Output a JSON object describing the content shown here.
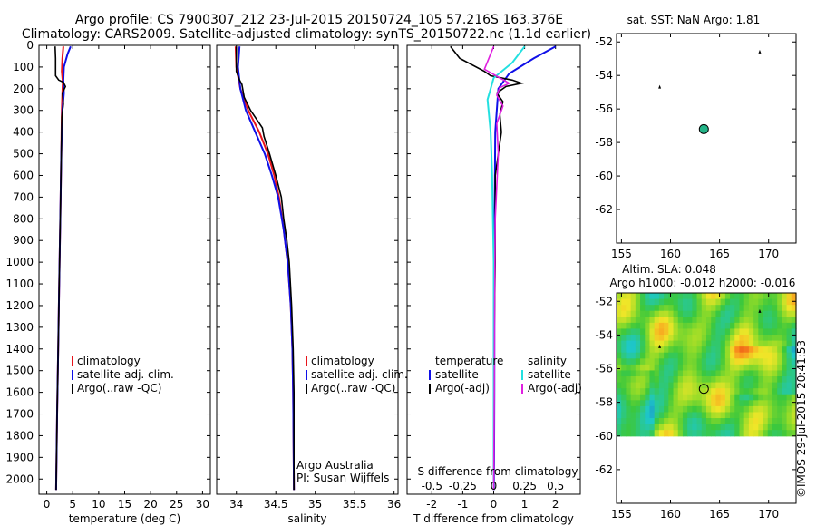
{
  "header": {
    "line1": "Argo profile: CS 7900307_212 23-Jul-2015 20150724_105 57.216S 163.376E",
    "line2": "Climatology: CARS2009. Satellite-adjusted climatology: synTS_20150722.nc (1.1d earlier)"
  },
  "side_label": "©IMOS 29-Jul-2015 20:41:53",
  "colors": {
    "climatology": "#e8141b",
    "satellite": "#1010e8",
    "argo": "#000000",
    "sal_satellite": "#22e0e0",
    "sal_argo": "#e020e0",
    "float_marker": "#23b488"
  },
  "chart_data": [
    {
      "type": "line",
      "panel": "temperature",
      "title": "",
      "xlabel": "temperature (deg C)",
      "ylabel": "",
      "xlim": [
        -1.5,
        31.5
      ],
      "ylim": [
        2070,
        0
      ],
      "xticks": [
        0,
        5,
        10,
        15,
        20,
        25,
        30
      ],
      "yticks": [
        0,
        100,
        200,
        300,
        400,
        500,
        600,
        700,
        800,
        900,
        1000,
        1100,
        1200,
        1300,
        1400,
        1500,
        1600,
        1700,
        1800,
        1900,
        2000
      ],
      "legend": [
        "climatology",
        "satellite-adj. clim.",
        "Argo(..raw -QC)"
      ],
      "series": [
        {
          "name": "climatology",
          "color_key": "climatology",
          "points": [
            [
              3.2,
              5
            ],
            [
              3.0,
              60
            ],
            [
              2.9,
              120
            ],
            [
              3.1,
              170
            ],
            [
              3.0,
              220
            ],
            [
              2.9,
              300
            ],
            [
              2.8,
              500
            ],
            [
              2.6,
              800
            ],
            [
              2.4,
              1100
            ],
            [
              2.2,
              1400
            ],
            [
              2.0,
              1700
            ],
            [
              1.8,
              2050
            ]
          ]
        },
        {
          "name": "satellite-adj. clim.",
          "color_key": "satellite",
          "points": [
            [
              4.6,
              5
            ],
            [
              4.0,
              40
            ],
            [
              3.3,
              100
            ],
            [
              3.2,
              160
            ],
            [
              3.3,
              220
            ],
            [
              3.0,
              300
            ],
            [
              2.8,
              500
            ],
            [
              2.6,
              800
            ],
            [
              2.4,
              1100
            ],
            [
              2.2,
              1400
            ],
            [
              2.0,
              1700
            ],
            [
              1.8,
              2050
            ]
          ]
        },
        {
          "name": "Argo(..raw -QC)",
          "color_key": "argo",
          "points": [
            [
              1.6,
              5
            ],
            [
              1.7,
              60
            ],
            [
              1.7,
              140
            ],
            [
              2.3,
              160
            ],
            [
              3.2,
              170
            ],
            [
              3.6,
              190
            ],
            [
              3.0,
              220
            ],
            [
              3.2,
              270
            ],
            [
              2.9,
              330
            ],
            [
              2.8,
              500
            ],
            [
              2.6,
              800
            ],
            [
              2.4,
              1100
            ],
            [
              2.2,
              1400
            ],
            [
              2.0,
              1700
            ],
            [
              1.8,
              2050
            ]
          ]
        }
      ]
    },
    {
      "type": "line",
      "panel": "salinity",
      "xlabel": "salinity",
      "xlim": [
        33.75,
        36.05
      ],
      "ylim": [
        2070,
        0
      ],
      "xticks": [
        34,
        34.5,
        35,
        35.5,
        36
      ],
      "legend": [
        "climatology",
        "satellite-adj. clim.",
        "Argo(..raw -QC)"
      ],
      "annotations": [
        "Argo Australia",
        "PI: Susan Wijffels"
      ],
      "series": [
        {
          "name": "climatology",
          "color_key": "climatology",
          "points": [
            [
              33.99,
              5
            ],
            [
              34.0,
              100
            ],
            [
              34.05,
              200
            ],
            [
              34.15,
              300
            ],
            [
              34.29,
              400
            ],
            [
              34.4,
              500
            ],
            [
              34.48,
              600
            ],
            [
              34.54,
              700
            ],
            [
              34.6,
              850
            ],
            [
              34.65,
              1000
            ],
            [
              34.69,
              1200
            ],
            [
              34.71,
              1400
            ],
            [
              34.72,
              1600
            ],
            [
              34.73,
              2050
            ]
          ]
        },
        {
          "name": "satellite-adj. clim.",
          "color_key": "satellite",
          "points": [
            [
              34.04,
              5
            ],
            [
              34.02,
              100
            ],
            [
              34.05,
              200
            ],
            [
              34.12,
              300
            ],
            [
              34.24,
              400
            ],
            [
              34.36,
              500
            ],
            [
              34.45,
              600
            ],
            [
              34.53,
              700
            ],
            [
              34.6,
              850
            ],
            [
              34.65,
              1000
            ],
            [
              34.69,
              1200
            ],
            [
              34.71,
              1400
            ],
            [
              34.72,
              1600
            ],
            [
              34.73,
              2050
            ]
          ]
        },
        {
          "name": "Argo(..raw -QC)",
          "color_key": "argo",
          "points": [
            [
              34.0,
              5
            ],
            [
              34.0,
              120
            ],
            [
              34.04,
              160
            ],
            [
              34.07,
              180
            ],
            [
              34.1,
              240
            ],
            [
              34.18,
              300
            ],
            [
              34.33,
              380
            ],
            [
              34.35,
              420
            ],
            [
              34.42,
              500
            ],
            [
              34.5,
              600
            ],
            [
              34.57,
              700
            ],
            [
              34.6,
              800
            ],
            [
              34.64,
              900
            ],
            [
              34.67,
              1000
            ],
            [
              34.7,
              1200
            ],
            [
              34.72,
              1400
            ],
            [
              34.73,
              1600
            ],
            [
              34.73,
              2050
            ]
          ]
        }
      ]
    },
    {
      "type": "line",
      "panel": "difference",
      "xlabel": "T difference from climatology",
      "xlabel_top": "S difference from climatology",
      "xlim": [
        -2.8,
        2.8
      ],
      "ylim": [
        2070,
        0
      ],
      "xticks": [
        -2,
        -1,
        0,
        1,
        2
      ],
      "xticks_top_labels": [
        "-0.5",
        "-0.25",
        "0",
        "0.25",
        "0.5"
      ],
      "xticks_top_positions": [
        -2,
        -1,
        0,
        1,
        2
      ],
      "legend_titles": [
        "temperature",
        "salinity"
      ],
      "legend": [
        "satellite",
        "Argo(-adj)",
        "satellite",
        "Argo(-adj)"
      ],
      "series": [
        {
          "name": "temperature satellite",
          "color_key": "satellite",
          "points": [
            [
              2.0,
              5
            ],
            [
              1.3,
              60
            ],
            [
              0.5,
              130
            ],
            [
              0.15,
              200
            ],
            [
              0.05,
              400
            ],
            [
              0.03,
              800
            ],
            [
              0.02,
              1200
            ],
            [
              0.02,
              1600
            ],
            [
              0.01,
              2050
            ]
          ]
        },
        {
          "name": "temperature Argo(-adj)",
          "color_key": "argo",
          "points": [
            [
              -1.4,
              5
            ],
            [
              -1.1,
              60
            ],
            [
              -0.3,
              120
            ],
            [
              -0.1,
              140
            ],
            [
              0.6,
              160
            ],
            [
              0.9,
              175
            ],
            [
              0.4,
              190
            ],
            [
              0.1,
              220
            ],
            [
              0.3,
              260
            ],
            [
              0.2,
              320
            ],
            [
              0.25,
              400
            ],
            [
              0.05,
              600
            ],
            [
              0.05,
              1000
            ],
            [
              0.0,
              1500
            ],
            [
              0.0,
              2050
            ]
          ]
        },
        {
          "name": "salinity satellite",
          "color_key": "sal_satellite",
          "points": [
            [
              1.0,
              5
            ],
            [
              0.6,
              80
            ],
            [
              0.0,
              150
            ],
            [
              -0.2,
              250
            ],
            [
              -0.1,
              400
            ],
            [
              -0.05,
              600
            ],
            [
              0.0,
              1000
            ],
            [
              0.0,
              1500
            ],
            [
              0.0,
              2050
            ]
          ]
        },
        {
          "name": "salinity Argo(-adj)",
          "color_key": "sal_argo",
          "points": [
            [
              0.0,
              5
            ],
            [
              -0.3,
              110
            ],
            [
              0.2,
              150
            ],
            [
              0.5,
              175
            ],
            [
              0.2,
              195
            ],
            [
              0.1,
              230
            ],
            [
              0.3,
              280
            ],
            [
              0.1,
              360
            ],
            [
              0.15,
              500
            ],
            [
              0.05,
              800
            ],
            [
              0.03,
              1200
            ],
            [
              0.02,
              1600
            ],
            [
              0.0,
              2050
            ]
          ]
        }
      ]
    },
    {
      "type": "scatter",
      "panel": "sst_map",
      "title": "sat. SST: NaN  Argo: 1.81",
      "xlim": [
        154.5,
        172.8
      ],
      "ylim": [
        -64,
        -51.5
      ],
      "xticks": [
        155,
        160,
        165,
        170
      ],
      "yticks": [
        -52,
        -54,
        -56,
        -58,
        -60,
        -62
      ],
      "points": [
        [
          163.4,
          -57.2
        ]
      ],
      "small_marks": [
        [
          158.9,
          -54.7
        ],
        [
          169.1,
          -52.6
        ]
      ]
    },
    {
      "type": "heatmap",
      "panel": "sla_map",
      "title": "Altim. SLA: 0.048",
      "subtitle": "Argo h1000: -0.012 h2000: -0.016",
      "xlim": [
        154.5,
        172.8
      ],
      "ylim": [
        -64,
        -51.5
      ],
      "xticks": [
        155,
        160,
        165,
        170
      ],
      "yticks": [
        -52,
        -54,
        -56,
        -58,
        -60,
        -62
      ],
      "field_extent": {
        "lon": [
          154.5,
          172.8
        ],
        "lat": [
          -60,
          -51.5
        ]
      },
      "points": [
        [
          163.4,
          -57.2
        ]
      ],
      "small_marks": [
        [
          158.9,
          -54.7
        ],
        [
          169.1,
          -52.6
        ]
      ]
    }
  ]
}
